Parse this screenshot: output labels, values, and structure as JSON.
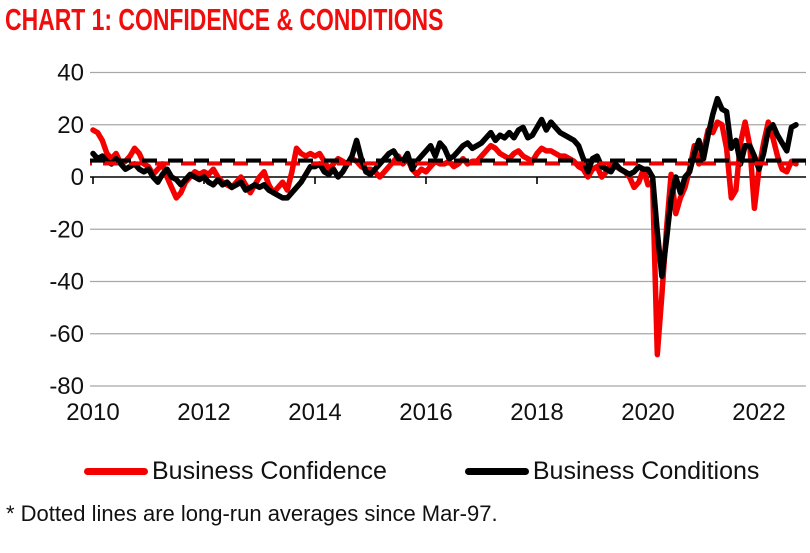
{
  "page": {
    "title": "CHART 1: CONFIDENCE & CONDITIONS",
    "footnote": "* Dotted lines are long-run averages since Mar-97."
  },
  "colors": {
    "title_red": "#f20d0d",
    "confidence_red": "#f40000",
    "conditions_black": "#000000",
    "gridline_gray": "#a8a8a8",
    "axis_black": "#000000",
    "label_color": "#111111"
  },
  "legend": {
    "items": [
      {
        "label": "Business Confidence",
        "color": "#f40000"
      },
      {
        "label": "Business Conditions",
        "color": "#000000"
      }
    ]
  },
  "chart_data": {
    "type": "line",
    "title": "CHART 1: CONFIDENCE & CONDITIONS",
    "x_start_year": 2010,
    "x_frequency": "monthly",
    "x_end": "Sep-2022",
    "xlim": [
      2010,
      2022.9
    ],
    "ylim": [
      -80,
      40
    ],
    "yticks": [
      40,
      20,
      0,
      -20,
      -40,
      -60,
      -80
    ],
    "xticks": [
      2010,
      2012,
      2014,
      2016,
      2018,
      2020,
      2022
    ],
    "grid": "horizontal-only",
    "legend_position": "bottom",
    "series": [
      {
        "name": "Business Confidence",
        "color": "#f40000",
        "values": [
          18,
          17,
          14,
          9,
          7,
          9,
          5,
          6,
          8,
          11,
          9,
          5,
          4,
          1,
          3,
          5,
          0,
          -4,
          -8,
          -6,
          -2,
          0,
          2,
          1,
          2,
          1,
          3,
          0,
          -2,
          -3,
          -4,
          -2,
          0,
          -3,
          -6,
          -3,
          0,
          2,
          -3,
          -6,
          -4,
          -2,
          -5,
          2,
          11,
          9,
          8,
          9,
          8,
          9,
          6,
          3,
          5,
          7,
          6,
          5,
          7,
          6,
          4,
          3,
          3,
          2,
          0,
          2,
          4,
          6,
          8,
          5,
          7,
          3,
          1,
          3,
          2,
          4,
          6,
          5,
          5,
          6,
          4,
          5,
          7,
          5,
          6,
          6,
          8,
          10,
          12,
          11,
          9,
          8,
          7,
          9,
          10,
          8,
          7,
          6,
          9,
          11,
          10,
          10,
          9,
          8,
          8,
          7,
          6,
          4,
          3,
          0,
          3,
          4,
          0,
          2,
          5,
          4,
          3,
          2,
          0,
          -4,
          -2,
          3,
          -3,
          -2,
          -68,
          -45,
          -20,
          1,
          -14,
          -8,
          -4,
          3,
          12,
          5,
          10,
          18,
          17,
          21,
          20,
          11,
          -8,
          -5,
          13,
          21,
          12,
          -12,
          3,
          13,
          21,
          15,
          8,
          3,
          2,
          6,
          5
        ]
      },
      {
        "name": "Business Conditions",
        "color": "#000000",
        "values": [
          9,
          7,
          8,
          6,
          5,
          7,
          5,
          3,
          4,
          5,
          3,
          2,
          3,
          0,
          -2,
          1,
          3,
          0,
          -1,
          -3,
          -1,
          1,
          0,
          -1,
          0,
          -2,
          -3,
          -1,
          -3,
          -2,
          -4,
          -3,
          -2,
          -5,
          -4,
          -3,
          -4,
          -3,
          -5,
          -6,
          -7,
          -8,
          -8,
          -6,
          -4,
          -2,
          1,
          4,
          4,
          5,
          2,
          1,
          3,
          0,
          2,
          5,
          8,
          14,
          7,
          2,
          1,
          3,
          5,
          7,
          9,
          10,
          7,
          6,
          9,
          3,
          6,
          8,
          10,
          12,
          8,
          13,
          11,
          7,
          8,
          10,
          12,
          13,
          11,
          12,
          13,
          15,
          17,
          14,
          16,
          15,
          17,
          15,
          18,
          19,
          15,
          16,
          19,
          22,
          18,
          21,
          19,
          17,
          16,
          15,
          14,
          12,
          7,
          2,
          7,
          8,
          4,
          3,
          2,
          5,
          3,
          2,
          1,
          2,
          4,
          3,
          3,
          0,
          -21,
          -38,
          -24,
          -8,
          0,
          -6,
          0,
          2,
          9,
          14,
          7,
          16,
          24,
          30,
          26,
          25,
          11,
          14,
          5,
          12,
          12,
          8,
          3,
          9,
          18,
          20,
          16,
          13,
          10,
          19,
          20
        ]
      }
    ],
    "long_run_average_lines": [
      {
        "name": "Business Confidence",
        "value": 5.2,
        "color": "#f40000",
        "style": "dashed"
      },
      {
        "name": "Business Conditions",
        "value": 6.3,
        "color": "#000000",
        "style": "dashed"
      }
    ],
    "average_since": "Mar-97"
  }
}
